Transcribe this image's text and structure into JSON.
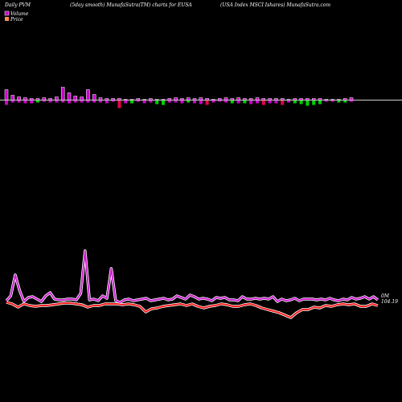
{
  "header": {
    "left": "Daily PVM",
    "center": "(5day smooth) MunafaSutra(TM) charts for EUSA",
    "right": "(USA Index MSCI Ishares) MunafaSutra.com"
  },
  "legend": {
    "volume_label": "Volume",
    "price_label": "Price"
  },
  "colors": {
    "background": "#000000",
    "up_bar": "#cc00cc",
    "up_bar_edge": "#ffffff",
    "down_bar": "#e8004a",
    "green_bar": "#00d000",
    "baseline": "#cccccc",
    "volume_line": "#cc22cc",
    "price_line": "#ff2020",
    "label_text": "#ffffff"
  },
  "chart_data": {
    "type": "line",
    "volume_bars": [
      {
        "up": 13,
        "down": 6,
        "color": "magenta"
      },
      {
        "up": 6,
        "down": 3,
        "color": "magenta"
      },
      {
        "up": 4,
        "down": 3,
        "color": "magenta"
      },
      {
        "up": 3,
        "down": 4,
        "color": "magenta"
      },
      {
        "up": 2,
        "down": 4,
        "color": "magenta"
      },
      {
        "up": 2,
        "down": 3,
        "color": "green"
      },
      {
        "up": 3,
        "down": 2,
        "color": "magenta"
      },
      {
        "up": 2,
        "down": 3,
        "color": "magenta"
      },
      {
        "up": 4,
        "down": 3,
        "color": "magenta"
      },
      {
        "up": 16,
        "down": 3,
        "color": "magenta"
      },
      {
        "up": 9,
        "down": 4,
        "color": "magenta"
      },
      {
        "up": 5,
        "down": 3,
        "color": "magenta"
      },
      {
        "up": 4,
        "down": 3,
        "color": "magenta"
      },
      {
        "up": 13,
        "down": 3,
        "color": "magenta"
      },
      {
        "up": 7,
        "down": 3,
        "color": "magenta"
      },
      {
        "up": 3,
        "down": 3,
        "color": "magenta"
      },
      {
        "up": 2,
        "down": 4,
        "color": "magenta"
      },
      {
        "up": 2,
        "down": 2,
        "color": "magenta"
      },
      {
        "up": 2,
        "down": 10,
        "color": "red"
      },
      {
        "up": 1,
        "down": 4,
        "color": "magenta"
      },
      {
        "up": 1,
        "down": 4,
        "color": "green"
      },
      {
        "up": 2,
        "down": 2,
        "color": "magenta"
      },
      {
        "up": 1,
        "down": 4,
        "color": "magenta"
      },
      {
        "up": 2,
        "down": 3,
        "color": "magenta"
      },
      {
        "up": 1,
        "down": 5,
        "color": "green"
      },
      {
        "up": 1,
        "down": 6,
        "color": "green"
      },
      {
        "up": 2,
        "down": 3,
        "color": "magenta"
      },
      {
        "up": 3,
        "down": 3,
        "color": "magenta"
      },
      {
        "up": 2,
        "down": 4,
        "color": "magenta"
      },
      {
        "up": 3,
        "down": 3,
        "color": "green"
      },
      {
        "up": 2,
        "down": 4,
        "color": "magenta"
      },
      {
        "up": 3,
        "down": 5,
        "color": "magenta"
      },
      {
        "up": 2,
        "down": 6,
        "color": "red"
      },
      {
        "up": 1,
        "down": 3,
        "color": "magenta"
      },
      {
        "up": 2,
        "down": 2,
        "color": "magenta"
      },
      {
        "up": 3,
        "down": 3,
        "color": "magenta"
      },
      {
        "up": 2,
        "down": 4,
        "color": "green"
      },
      {
        "up": 3,
        "down": 4,
        "color": "magenta"
      },
      {
        "up": 2,
        "down": 4,
        "color": "green"
      },
      {
        "up": 2,
        "down": 5,
        "color": "magenta"
      },
      {
        "up": 3,
        "down": 4,
        "color": "magenta"
      },
      {
        "up": 2,
        "down": 6,
        "color": "red"
      },
      {
        "up": 2,
        "down": 4,
        "color": "magenta"
      },
      {
        "up": 2,
        "down": 4,
        "color": "magenta"
      },
      {
        "up": 2,
        "down": 6,
        "color": "red"
      },
      {
        "up": 1,
        "down": 3,
        "color": "magenta"
      },
      {
        "up": 2,
        "down": 4,
        "color": "green"
      },
      {
        "up": 2,
        "down": 5,
        "color": "green"
      },
      {
        "up": 2,
        "down": 7,
        "color": "green"
      },
      {
        "up": 2,
        "down": 6,
        "color": "green"
      },
      {
        "up": 2,
        "down": 5,
        "color": "green"
      },
      {
        "up": 1,
        "down": 2,
        "color": "magenta"
      },
      {
        "up": 1,
        "down": 2,
        "color": "magenta"
      },
      {
        "up": 1,
        "down": 3,
        "color": "green"
      },
      {
        "up": 2,
        "down": 3,
        "color": "green"
      },
      {
        "up": 3,
        "down": 2,
        "color": "magenta"
      }
    ],
    "volume_line": [
      374,
      368,
      342,
      361,
      375,
      370,
      369,
      372,
      375,
      368,
      364,
      372,
      373,
      373,
      372,
      372,
      373,
      365,
      312,
      373,
      372,
      374,
      368,
      371,
      334,
      374,
      376,
      373,
      372,
      374,
      373,
      372,
      371,
      374,
      373,
      372,
      371,
      373,
      372,
      368,
      370,
      372,
      367,
      369,
      372,
      371,
      372,
      374,
      370,
      371,
      370,
      373,
      373,
      374,
      369,
      372,
      372,
      371,
      372,
      371,
      372,
      369,
      375,
      372,
      374,
      373,
      371,
      374,
      372,
      372,
      372,
      373,
      372,
      373,
      371,
      373,
      374,
      372,
      373,
      370,
      372,
      371,
      369,
      372,
      369,
      373
    ],
    "price_line": [
      376,
      378,
      382,
      378,
      380,
      381,
      380,
      380,
      379,
      378,
      377,
      377,
      378,
      379,
      382,
      380,
      380,
      378,
      378,
      378,
      379,
      378,
      379,
      381,
      388,
      384,
      383,
      381,
      380,
      379,
      378,
      380,
      378,
      381,
      383,
      381,
      380,
      378,
      379,
      381,
      381,
      379,
      378,
      380,
      383,
      385,
      387,
      389,
      392,
      395,
      389,
      385,
      385,
      382,
      383,
      380,
      381,
      379,
      378,
      379,
      378,
      381,
      381,
      378,
      380
    ],
    "volume_label_right": "0M",
    "price_label_right": "104.19"
  }
}
